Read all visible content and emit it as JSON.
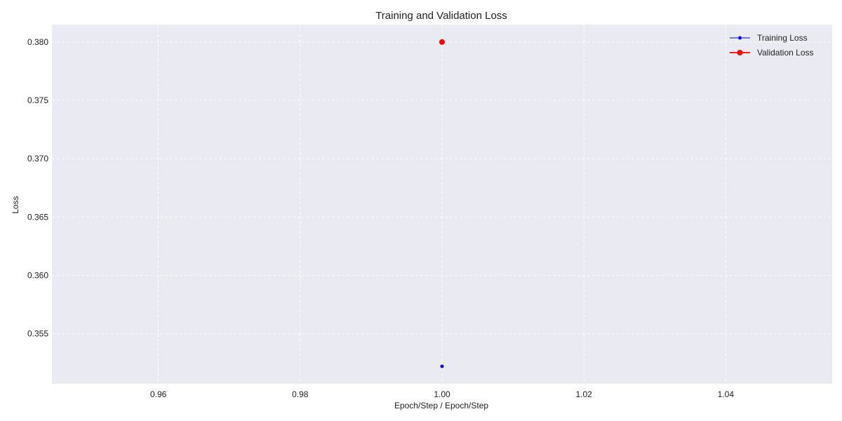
{
  "chart_data": {
    "type": "line",
    "title": "Training and Validation Loss",
    "xlabel": "Epoch/Step / Epoch/Step",
    "ylabel": "Loss",
    "xlim": [
      0.945,
      1.055
    ],
    "ylim": [
      0.3507,
      0.3815
    ],
    "x_ticks": [
      0.96,
      0.98,
      1.0,
      1.02,
      1.04
    ],
    "x_tick_labels": [
      "0.96",
      "0.98",
      "1.00",
      "1.02",
      "1.04"
    ],
    "y_ticks": [
      0.355,
      0.36,
      0.365,
      0.37,
      0.375,
      0.38
    ],
    "y_tick_labels": [
      "0.355",
      "0.360",
      "0.365",
      "0.370",
      "0.375",
      "0.380"
    ],
    "grid": true,
    "legend_position": "top-right",
    "series": [
      {
        "name": "Training Loss",
        "color": "#0000ff",
        "marker": "small-dot",
        "x": [
          1.0
        ],
        "y": [
          0.3522
        ]
      },
      {
        "name": "Validation Loss",
        "color": "#ff0000",
        "marker": "dot",
        "x": [
          1.0
        ],
        "y": [
          0.38
        ]
      }
    ]
  },
  "colors": {
    "plot_background": "#eaeaf2",
    "grid": "#ffffff"
  }
}
